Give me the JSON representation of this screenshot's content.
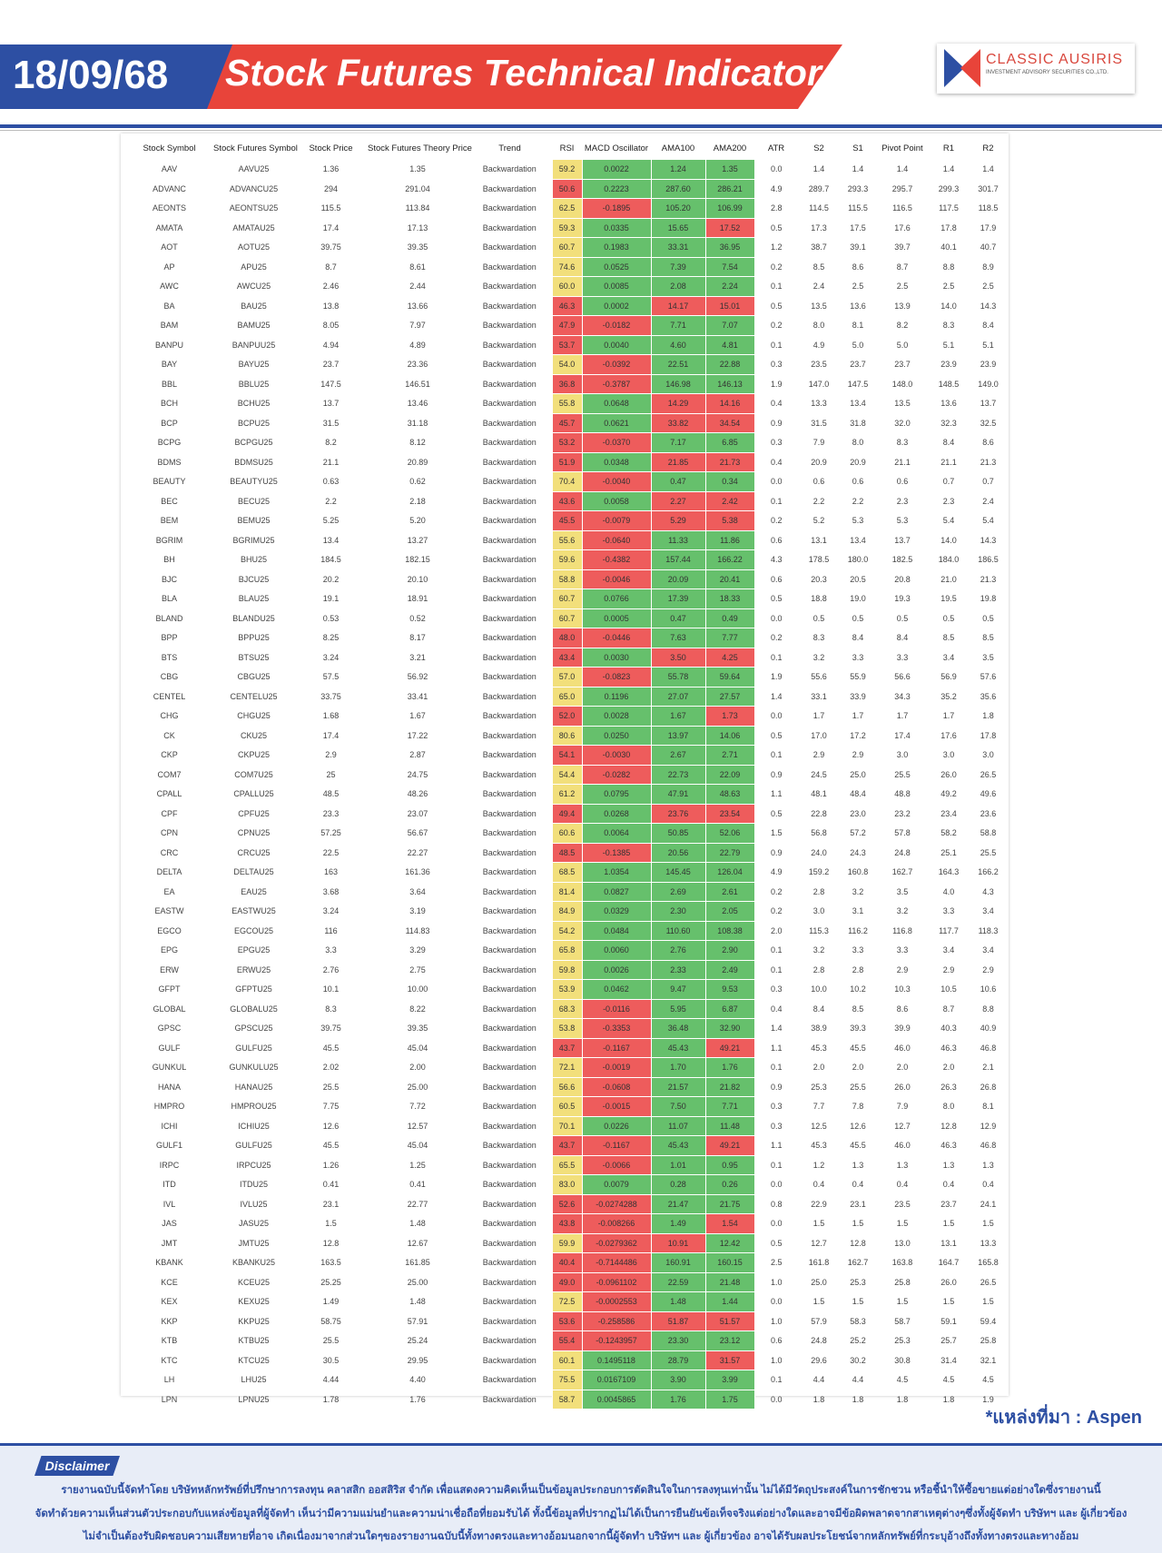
{
  "header": {
    "date": "18/09/68",
    "title": "Stock Futures Technical Indicator",
    "logo_name": "CLASSIC AUSIRIS",
    "logo_sub": "INVESTMENT ADVISORY SECURITIES CO.,LTD."
  },
  "palette": {
    "y": "#f2df7b",
    "r": "#ee5c5c",
    "g": "#66c06c"
  },
  "table": {
    "columns": [
      "Stock Symbol",
      "Stock Futures Symbol",
      "Stock Price",
      "Stock Futures Theory Price",
      "Trend",
      "RSI",
      "MACD Oscillator",
      "AMA100",
      "AMA200",
      "ATR",
      "S2",
      "S1",
      "Pivot Point",
      "R1",
      "R2"
    ],
    "rows": [
      [
        "AAV",
        "AAVU25",
        "1.36",
        "1.35",
        "Backwardation",
        "59.2",
        "0.0022",
        "1.24",
        "1.35",
        "0.0",
        "1.4",
        "1.4",
        "1.4",
        "1.4",
        "1.4"
      ],
      [
        "ADVANC",
        "ADVANCU25",
        "294",
        "291.04",
        "Backwardation",
        "50.6",
        "0.2223",
        "287.60",
        "286.21",
        "4.9",
        "289.7",
        "293.3",
        "295.7",
        "299.3",
        "301.7"
      ],
      [
        "AEONTS",
        "AEONTSU25",
        "115.5",
        "113.84",
        "Backwardation",
        "62.5",
        "-0.1895",
        "105.20",
        "106.99",
        "2.8",
        "114.5",
        "115.5",
        "116.5",
        "117.5",
        "118.5"
      ],
      [
        "AMATA",
        "AMATAU25",
        "17.4",
        "17.13",
        "Backwardation",
        "59.3",
        "0.0335",
        "15.65",
        "17.52",
        "0.5",
        "17.3",
        "17.5",
        "17.6",
        "17.8",
        "17.9"
      ],
      [
        "AOT",
        "AOTU25",
        "39.75",
        "39.35",
        "Backwardation",
        "60.7",
        "0.1983",
        "33.31",
        "36.95",
        "1.2",
        "38.7",
        "39.1",
        "39.7",
        "40.1",
        "40.7"
      ],
      [
        "AP",
        "APU25",
        "8.7",
        "8.61",
        "Backwardation",
        "74.6",
        "0.0525",
        "7.39",
        "7.54",
        "0.2",
        "8.5",
        "8.6",
        "8.7",
        "8.8",
        "8.9"
      ],
      [
        "AWC",
        "AWCU25",
        "2.46",
        "2.44",
        "Backwardation",
        "60.0",
        "0.0085",
        "2.08",
        "2.24",
        "0.1",
        "2.4",
        "2.5",
        "2.5",
        "2.5",
        "2.5"
      ],
      [
        "BA",
        "BAU25",
        "13.8",
        "13.66",
        "Backwardation",
        "46.3",
        "0.0002",
        "14.17",
        "15.01",
        "0.5",
        "13.5",
        "13.6",
        "13.9",
        "14.0",
        "14.3"
      ],
      [
        "BAM",
        "BAMU25",
        "8.05",
        "7.97",
        "Backwardation",
        "47.9",
        "-0.0182",
        "7.71",
        "7.07",
        "0.2",
        "8.0",
        "8.1",
        "8.2",
        "8.3",
        "8.4"
      ],
      [
        "BANPU",
        "BANPUU25",
        "4.94",
        "4.89",
        "Backwardation",
        "53.7",
        "0.0040",
        "4.60",
        "4.81",
        "0.1",
        "4.9",
        "5.0",
        "5.0",
        "5.1",
        "5.1"
      ],
      [
        "BAY",
        "BAYU25",
        "23.7",
        "23.36",
        "Backwardation",
        "54.0",
        "-0.0392",
        "22.51",
        "22.88",
        "0.3",
        "23.5",
        "23.7",
        "23.7",
        "23.9",
        "23.9"
      ],
      [
        "BBL",
        "BBLU25",
        "147.5",
        "146.51",
        "Backwardation",
        "36.8",
        "-0.3787",
        "146.98",
        "146.13",
        "1.9",
        "147.0",
        "147.5",
        "148.0",
        "148.5",
        "149.0"
      ],
      [
        "BCH",
        "BCHU25",
        "13.7",
        "13.46",
        "Backwardation",
        "55.8",
        "0.0648",
        "14.29",
        "14.16",
        "0.4",
        "13.3",
        "13.4",
        "13.5",
        "13.6",
        "13.7"
      ],
      [
        "BCP",
        "BCPU25",
        "31.5",
        "31.18",
        "Backwardation",
        "45.7",
        "0.0621",
        "33.82",
        "34.54",
        "0.9",
        "31.5",
        "31.8",
        "32.0",
        "32.3",
        "32.5"
      ],
      [
        "BCPG",
        "BCPGU25",
        "8.2",
        "8.12",
        "Backwardation",
        "53.2",
        "-0.0370",
        "7.17",
        "6.85",
        "0.3",
        "7.9",
        "8.0",
        "8.3",
        "8.4",
        "8.6"
      ],
      [
        "BDMS",
        "BDMSU25",
        "21.1",
        "20.89",
        "Backwardation",
        "51.9",
        "0.0348",
        "21.85",
        "21.73",
        "0.4",
        "20.9",
        "20.9",
        "21.1",
        "21.1",
        "21.3"
      ],
      [
        "BEAUTY",
        "BEAUTYU25",
        "0.63",
        "0.62",
        "Backwardation",
        "70.4",
        "-0.0040",
        "0.47",
        "0.34",
        "0.0",
        "0.6",
        "0.6",
        "0.6",
        "0.7",
        "0.7"
      ],
      [
        "BEC",
        "BECU25",
        "2.2",
        "2.18",
        "Backwardation",
        "43.6",
        "0.0058",
        "2.27",
        "2.42",
        "0.1",
        "2.2",
        "2.2",
        "2.3",
        "2.3",
        "2.4"
      ],
      [
        "BEM",
        "BEMU25",
        "5.25",
        "5.20",
        "Backwardation",
        "45.5",
        "-0.0079",
        "5.29",
        "5.38",
        "0.2",
        "5.2",
        "5.3",
        "5.3",
        "5.4",
        "5.4"
      ],
      [
        "BGRIM",
        "BGRIMU25",
        "13.4",
        "13.27",
        "Backwardation",
        "55.6",
        "-0.0640",
        "11.33",
        "11.86",
        "0.6",
        "13.1",
        "13.4",
        "13.7",
        "14.0",
        "14.3"
      ],
      [
        "BH",
        "BHU25",
        "184.5",
        "182.15",
        "Backwardation",
        "59.6",
        "-0.4382",
        "157.44",
        "166.22",
        "4.3",
        "178.5",
        "180.0",
        "182.5",
        "184.0",
        "186.5"
      ],
      [
        "BJC",
        "BJCU25",
        "20.2",
        "20.10",
        "Backwardation",
        "58.8",
        "-0.0046",
        "20.09",
        "20.41",
        "0.6",
        "20.3",
        "20.5",
        "20.8",
        "21.0",
        "21.3"
      ],
      [
        "BLA",
        "BLAU25",
        "19.1",
        "18.91",
        "Backwardation",
        "60.7",
        "0.0766",
        "17.39",
        "18.33",
        "0.5",
        "18.8",
        "19.0",
        "19.3",
        "19.5",
        "19.8"
      ],
      [
        "BLAND",
        "BLANDU25",
        "0.53",
        "0.52",
        "Backwardation",
        "60.7",
        "0.0005",
        "0.47",
        "0.49",
        "0.0",
        "0.5",
        "0.5",
        "0.5",
        "0.5",
        "0.5"
      ],
      [
        "BPP",
        "BPPU25",
        "8.25",
        "8.17",
        "Backwardation",
        "48.0",
        "-0.0446",
        "7.63",
        "7.77",
        "0.2",
        "8.3",
        "8.4",
        "8.4",
        "8.5",
        "8.5"
      ],
      [
        "BTS",
        "BTSU25",
        "3.24",
        "3.21",
        "Backwardation",
        "43.4",
        "0.0030",
        "3.50",
        "4.25",
        "0.1",
        "3.2",
        "3.3",
        "3.3",
        "3.4",
        "3.5"
      ],
      [
        "CBG",
        "CBGU25",
        "57.5",
        "56.92",
        "Backwardation",
        "57.0",
        "-0.0823",
        "55.78",
        "59.64",
        "1.9",
        "55.6",
        "55.9",
        "56.6",
        "56.9",
        "57.6"
      ],
      [
        "CENTEL",
        "CENTELU25",
        "33.75",
        "33.41",
        "Backwardation",
        "65.0",
        "0.1196",
        "27.07",
        "27.57",
        "1.4",
        "33.1",
        "33.9",
        "34.3",
        "35.2",
        "35.6"
      ],
      [
        "CHG",
        "CHGU25",
        "1.68",
        "1.67",
        "Backwardation",
        "52.0",
        "0.0028",
        "1.67",
        "1.73",
        "0.0",
        "1.7",
        "1.7",
        "1.7",
        "1.7",
        "1.8"
      ],
      [
        "CK",
        "CKU25",
        "17.4",
        "17.22",
        "Backwardation",
        "80.6",
        "0.0250",
        "13.97",
        "14.06",
        "0.5",
        "17.0",
        "17.2",
        "17.4",
        "17.6",
        "17.8"
      ],
      [
        "CKP",
        "CKPU25",
        "2.9",
        "2.87",
        "Backwardation",
        "54.1",
        "-0.0030",
        "2.67",
        "2.71",
        "0.1",
        "2.9",
        "2.9",
        "3.0",
        "3.0",
        "3.0"
      ],
      [
        "COM7",
        "COM7U25",
        "25",
        "24.75",
        "Backwardation",
        "54.4",
        "-0.0282",
        "22.73",
        "22.09",
        "0.9",
        "24.5",
        "25.0",
        "25.5",
        "26.0",
        "26.5"
      ],
      [
        "CPALL",
        "CPALLU25",
        "48.5",
        "48.26",
        "Backwardation",
        "61.2",
        "0.0795",
        "47.91",
        "48.63",
        "1.1",
        "48.1",
        "48.4",
        "48.8",
        "49.2",
        "49.6"
      ],
      [
        "CPF",
        "CPFU25",
        "23.3",
        "23.07",
        "Backwardation",
        "49.4",
        "0.0268",
        "23.76",
        "23.54",
        "0.5",
        "22.8",
        "23.0",
        "23.2",
        "23.4",
        "23.6"
      ],
      [
        "CPN",
        "CPNU25",
        "57.25",
        "56.67",
        "Backwardation",
        "60.6",
        "0.0064",
        "50.85",
        "52.06",
        "1.5",
        "56.8",
        "57.2",
        "57.8",
        "58.2",
        "58.8"
      ],
      [
        "CRC",
        "CRCU25",
        "22.5",
        "22.27",
        "Backwardation",
        "48.5",
        "-0.1385",
        "20.56",
        "22.79",
        "0.9",
        "24.0",
        "24.3",
        "24.8",
        "25.1",
        "25.5"
      ],
      [
        "DELTA",
        "DELTAU25",
        "163",
        "161.36",
        "Backwardation",
        "68.5",
        "1.0354",
        "145.45",
        "126.04",
        "4.9",
        "159.2",
        "160.8",
        "162.7",
        "164.3",
        "166.2"
      ],
      [
        "EA",
        "EAU25",
        "3.68",
        "3.64",
        "Backwardation",
        "81.4",
        "0.0827",
        "2.69",
        "2.61",
        "0.2",
        "2.8",
        "3.2",
        "3.5",
        "4.0",
        "4.3"
      ],
      [
        "EASTW",
        "EASTWU25",
        "3.24",
        "3.19",
        "Backwardation",
        "84.9",
        "0.0329",
        "2.30",
        "2.05",
        "0.2",
        "3.0",
        "3.1",
        "3.2",
        "3.3",
        "3.4"
      ],
      [
        "EGCO",
        "EGCOU25",
        "116",
        "114.83",
        "Backwardation",
        "54.2",
        "0.0484",
        "110.60",
        "108.38",
        "2.0",
        "115.3",
        "116.2",
        "116.8",
        "117.7",
        "118.3"
      ],
      [
        "EPG",
        "EPGU25",
        "3.3",
        "3.29",
        "Backwardation",
        "65.8",
        "0.0060",
        "2.76",
        "2.90",
        "0.1",
        "3.2",
        "3.3",
        "3.3",
        "3.4",
        "3.4"
      ],
      [
        "ERW",
        "ERWU25",
        "2.76",
        "2.75",
        "Backwardation",
        "59.8",
        "0.0026",
        "2.33",
        "2.49",
        "0.1",
        "2.8",
        "2.8",
        "2.9",
        "2.9",
        "2.9"
      ],
      [
        "GFPT",
        "GFPTU25",
        "10.1",
        "10.00",
        "Backwardation",
        "53.9",
        "0.0462",
        "9.47",
        "9.53",
        "0.3",
        "10.0",
        "10.2",
        "10.3",
        "10.5",
        "10.6"
      ],
      [
        "GLOBAL",
        "GLOBALU25",
        "8.3",
        "8.22",
        "Backwardation",
        "68.3",
        "-0.0116",
        "5.95",
        "6.87",
        "0.4",
        "8.4",
        "8.5",
        "8.6",
        "8.7",
        "8.8"
      ],
      [
        "GPSC",
        "GPSCU25",
        "39.75",
        "39.35",
        "Backwardation",
        "53.8",
        "-0.3353",
        "36.48",
        "32.90",
        "1.4",
        "38.9",
        "39.3",
        "39.9",
        "40.3",
        "40.9"
      ],
      [
        "GULF",
        "GULFU25",
        "45.5",
        "45.04",
        "Backwardation",
        "43.7",
        "-0.1167",
        "45.43",
        "49.21",
        "1.1",
        "45.3",
        "45.5",
        "46.0",
        "46.3",
        "46.8"
      ],
      [
        "GUNKUL",
        "GUNKULU25",
        "2.02",
        "2.00",
        "Backwardation",
        "72.1",
        "-0.0019",
        "1.70",
        "1.76",
        "0.1",
        "2.0",
        "2.0",
        "2.0",
        "2.0",
        "2.1"
      ],
      [
        "HANA",
        "HANAU25",
        "25.5",
        "25.00",
        "Backwardation",
        "56.6",
        "-0.0608",
        "21.57",
        "21.82",
        "0.9",
        "25.3",
        "25.5",
        "26.0",
        "26.3",
        "26.8"
      ],
      [
        "HMPRO",
        "HMPROU25",
        "7.75",
        "7.72",
        "Backwardation",
        "60.5",
        "-0.0015",
        "7.50",
        "7.71",
        "0.3",
        "7.7",
        "7.8",
        "7.9",
        "8.0",
        "8.1"
      ],
      [
        "ICHI",
        "ICHIU25",
        "12.6",
        "12.57",
        "Backwardation",
        "70.1",
        "0.0226",
        "11.07",
        "11.48",
        "0.3",
        "12.5",
        "12.6",
        "12.7",
        "12.8",
        "12.9"
      ],
      [
        "GULF1",
        "GULFU25",
        "45.5",
        "45.04",
        "Backwardation",
        "43.7",
        "-0.1167",
        "45.43",
        "49.21",
        "1.1",
        "45.3",
        "45.5",
        "46.0",
        "46.3",
        "46.8"
      ],
      [
        "IRPC",
        "IRPCU25",
        "1.26",
        "1.25",
        "Backwardation",
        "65.5",
        "-0.0066",
        "1.01",
        "0.95",
        "0.1",
        "1.2",
        "1.3",
        "1.3",
        "1.3",
        "1.3"
      ],
      [
        "ITD",
        "ITDU25",
        "0.41",
        "0.41",
        "Backwardation",
        "83.0",
        "0.0079",
        "0.28",
        "0.26",
        "0.0",
        "0.4",
        "0.4",
        "0.4",
        "0.4",
        "0.4"
      ],
      [
        "IVL",
        "IVLU25",
        "23.1",
        "22.77",
        "Backwardation",
        "52.6",
        "-0.0274288",
        "21.47",
        "21.75",
        "0.8",
        "22.9",
        "23.1",
        "23.5",
        "23.7",
        "24.1"
      ],
      [
        "JAS",
        "JASU25",
        "1.5",
        "1.48",
        "Backwardation",
        "43.8",
        "-0.008266",
        "1.49",
        "1.54",
        "0.0",
        "1.5",
        "1.5",
        "1.5",
        "1.5",
        "1.5"
      ],
      [
        "JMT",
        "JMTU25",
        "12.8",
        "12.67",
        "Backwardation",
        "59.9",
        "-0.0279362",
        "10.91",
        "12.42",
        "0.5",
        "12.7",
        "12.8",
        "13.0",
        "13.1",
        "13.3"
      ],
      [
        "KBANK",
        "KBANKU25",
        "163.5",
        "161.85",
        "Backwardation",
        "40.4",
        "-0.7144486",
        "160.91",
        "160.15",
        "2.5",
        "161.8",
        "162.7",
        "163.8",
        "164.7",
        "165.8"
      ],
      [
        "KCE",
        "KCEU25",
        "25.25",
        "25.00",
        "Backwardation",
        "49.0",
        "-0.0961102",
        "22.59",
        "21.48",
        "1.0",
        "25.0",
        "25.3",
        "25.8",
        "26.0",
        "26.5"
      ],
      [
        "KEX",
        "KEXU25",
        "1.49",
        "1.48",
        "Backwardation",
        "72.5",
        "-0.0002553",
        "1.48",
        "1.44",
        "0.0",
        "1.5",
        "1.5",
        "1.5",
        "1.5",
        "1.5"
      ],
      [
        "KKP",
        "KKPU25",
        "58.75",
        "57.91",
        "Backwardation",
        "53.6",
        "-0.258586",
        "51.87",
        "51.57",
        "1.0",
        "57.9",
        "58.3",
        "58.7",
        "59.1",
        "59.4"
      ],
      [
        "KTB",
        "KTBU25",
        "25.5",
        "25.24",
        "Backwardation",
        "55.4",
        "-0.1243957",
        "23.30",
        "23.12",
        "0.6",
        "24.8",
        "25.2",
        "25.3",
        "25.7",
        "25.8"
      ],
      [
        "KTC",
        "KTCU25",
        "30.5",
        "29.95",
        "Backwardation",
        "60.1",
        "0.1495118",
        "28.79",
        "31.57",
        "1.0",
        "29.6",
        "30.2",
        "30.8",
        "31.4",
        "32.1"
      ],
      [
        "LH",
        "LHU25",
        "4.44",
        "4.40",
        "Backwardation",
        "75.5",
        "0.0167109",
        "3.90",
        "3.99",
        "0.1",
        "4.4",
        "4.4",
        "4.5",
        "4.5",
        "4.5"
      ],
      [
        "LPN",
        "LPNU25",
        "1.78",
        "1.76",
        "Backwardation",
        "58.7",
        "0.0045865",
        "1.76",
        "1.75",
        "0.0",
        "1.8",
        "1.8",
        "1.8",
        "1.8",
        "1.9"
      ]
    ],
    "cell_colors": [
      "yggg",
      "rggg",
      "yrgg",
      "yggr",
      "yggg",
      "yggg",
      "yggg",
      "rgrr",
      "rrgg",
      "rggg",
      "yrgg",
      "rrgg",
      "ygrr",
      "rgrr",
      "rrgg",
      "rgrr",
      "yrgg",
      "rgrr",
      "rrrr",
      "yrgg",
      "yrgg",
      "yrgg",
      "yggg",
      "yggg",
      "rrgg",
      "rgrr",
      "yrgg",
      "yggg",
      "rggr",
      "yggg",
      "rrgg",
      "yrgg",
      "yggg",
      "rgrr",
      "yggg",
      "rrgg",
      "yggg",
      "yggg",
      "yggg",
      "yggg",
      "yggg",
      "yggg",
      "yggg",
      "yrgg",
      "yrgg",
      "rrgr",
      "yrgg",
      "yrgg",
      "yrgg",
      "yggg",
      "rrgr",
      "yrgg",
      "yggg",
      "rrgg",
      "rrgr",
      "yrrg",
      "rrgg",
      "rrgg",
      "yrgg",
      "rrrr",
      "rrgg",
      "yggr",
      "yggg",
      "yggg"
    ]
  },
  "source": "*แหล่งที่มา : Aspen",
  "disclaimer": {
    "title": "Disclaimer",
    "lines": [
      "รายงานฉบับนี้จัดทำโดย บริษัทหลักทรัพย์ที่ปรึกษาการลงทุน คลาสสิก ออสสิริส จำกัด เพื่อแสดงความคิดเห็นเป็นข้อมูลประกอบการตัดสินใจในการลงทุนเท่านั้น ไม่ได้มีวัตถุประสงค์ในการชักชวน หรือชี้นำให้ซื้อขายแต่อย่างใดซึ่งรายงานนี้",
      "จัดทำด้วยความเห็นส่วนตัวประกอบกับแหล่งข้อมูลที่ผู้จัดทำ เห็นว่ามีความแม่นยำและความน่าเชื่อถือที่ยอมรับได้ ทั้งนี้ข้อมูลที่ปรากฏไม่ได้เป็นการยืนยันข้อเท็จจริงแต่อย่างใดและอาจมีข้อผิดพลาดจากสาเหตุต่างๆซึ่งทั้งผู้จัดทำ บริษัทฯ และ ผู้เกี่ยวข้อง",
      "ไม่จำเป็นต้องรับผิดชอบความเสียหายที่อาจ เกิดเนื่องมาจากส่วนใดๆของรายงานฉบับนี้ทั้งทางตรงและทางอ้อมนอกจากนี้ผู้จัดทำ บริษัทฯ และ ผู้เกี่ยวข้อง อาจได้รับผลประโยชน์จากหลักทรัพย์ที่กระบุอ้างถึงทั้งทางตรงและทางอ้อม"
    ]
  }
}
